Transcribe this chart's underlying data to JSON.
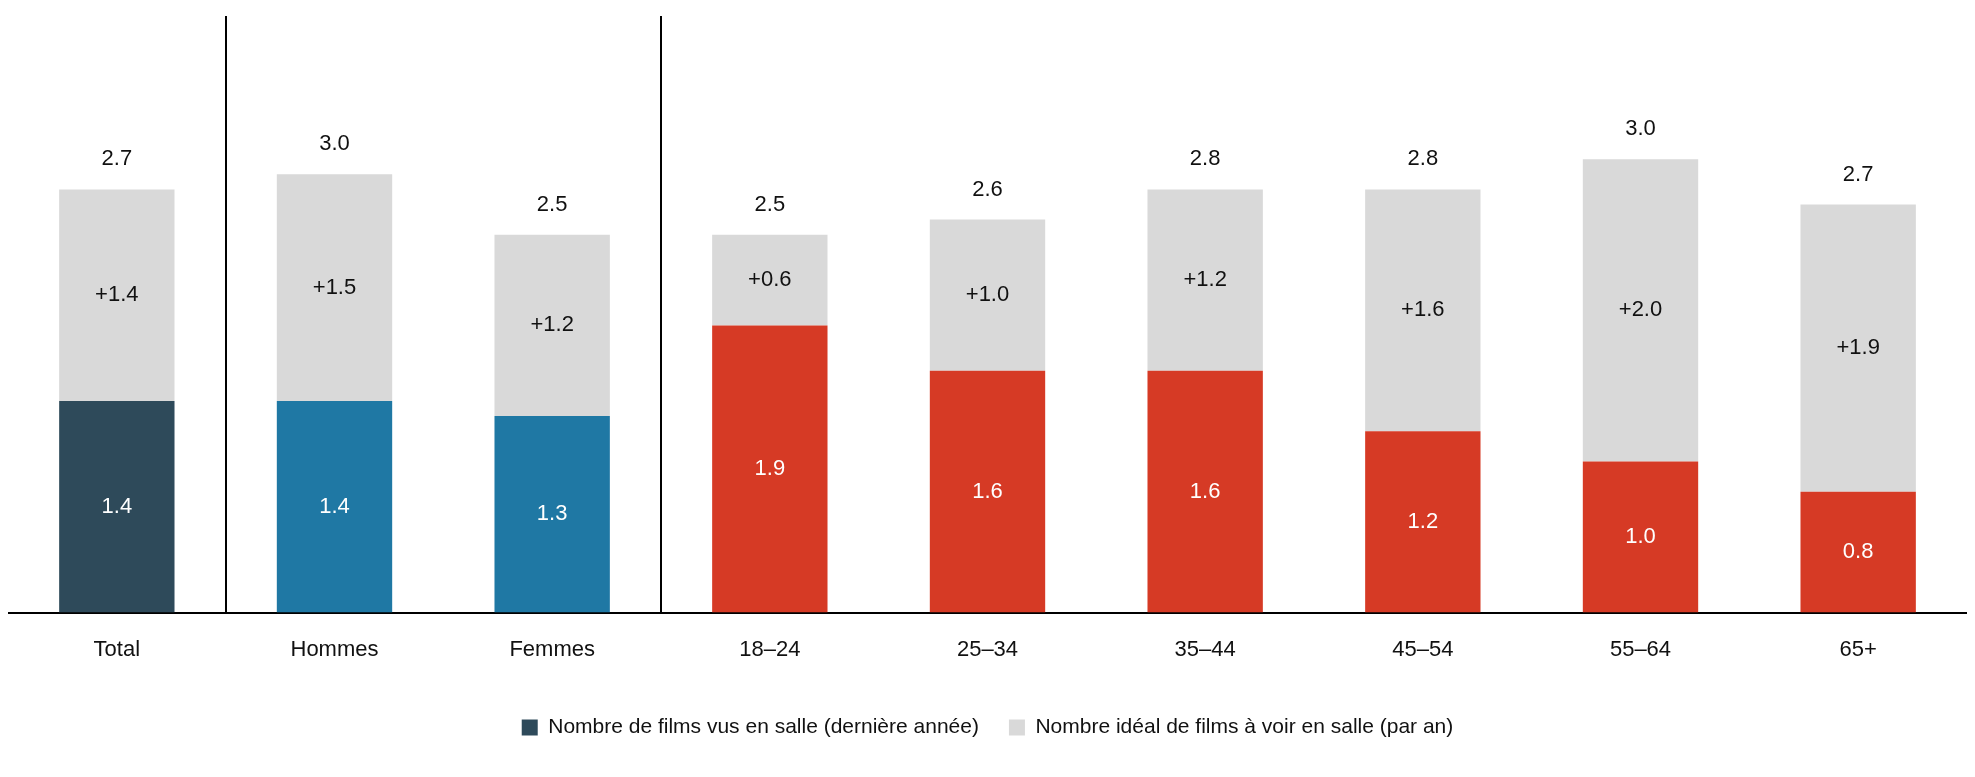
{
  "chart_data": {
    "type": "bar",
    "stacked": true,
    "categories": [
      "Total",
      "Hommes",
      "Femmes",
      "18–24",
      "25–34",
      "35–44",
      "45–54",
      "55–64",
      "65+"
    ],
    "series": [
      {
        "name": "Nombre de films vus en salle (dernière année)",
        "color": "#2e4a5a",
        "colors": [
          "#2e4a5a",
          "#1f78a4",
          "#1f78a4",
          "#d63a25",
          "#d63a25",
          "#d63a25",
          "#d63a25",
          "#d63a25",
          "#d63a25"
        ],
        "values": [
          1.4,
          1.4,
          1.3,
          1.9,
          1.6,
          1.6,
          1.2,
          1.0,
          0.8
        ],
        "value_labels": [
          "1.4",
          "1.4",
          "1.3",
          "1.9",
          "1.6",
          "1.6",
          "1.2",
          "1.0",
          "0.8"
        ]
      },
      {
        "name": "Nombre idéal de films à voir en salle (par an)",
        "color": "#d9d9d9",
        "values": [
          1.4,
          1.5,
          1.2,
          0.6,
          1.0,
          1.2,
          1.6,
          2.0,
          1.9
        ],
        "value_labels": [
          "+1.4",
          "+1.5",
          "+1.2",
          "+0.6",
          "+1.0",
          "+1.2",
          "+1.6",
          "+2.0",
          "+1.9"
        ]
      }
    ],
    "totals": [
      "2.7",
      "3.0",
      "2.5",
      "2.5",
      "2.6",
      "2.8",
      "2.8",
      "3.0",
      "2.7"
    ],
    "legend": "bottom",
    "grid": false
  }
}
